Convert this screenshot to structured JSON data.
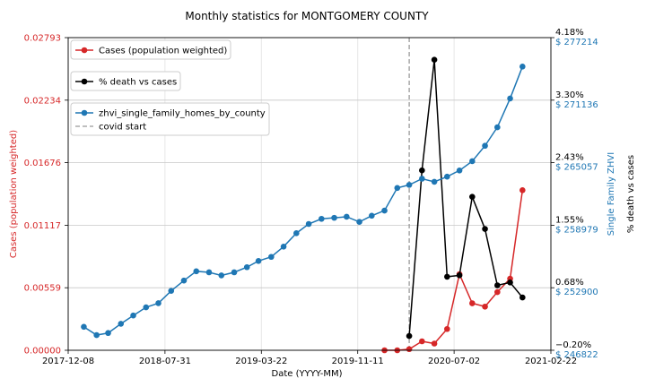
{
  "chart_data": {
    "type": "line",
    "title": "Monthly statistics for MONTGOMERY COUNTY",
    "xlabel": "Date (YYYY-MM)",
    "x_range": [
      "2017-12-08",
      "2021-02-22"
    ],
    "x_ticks": [
      "2017-12-08",
      "2018-07-31",
      "2019-03-22",
      "2019-11-11",
      "2020-07-02",
      "2021-02-22"
    ],
    "grid": true,
    "axes": {
      "left": {
        "label": "Cases (population weighted)",
        "color": "#d62728",
        "ylim": [
          0.0,
          0.02793
        ],
        "ticks": [
          "0.00000",
          "0.00559",
          "0.01117",
          "0.01676",
          "0.02234",
          "0.02793"
        ]
      },
      "right_inner": {
        "label": "Single Family ZHVI",
        "color": "#1f77b4",
        "ylim": [
          246822,
          277214
        ],
        "ticks": [
          "$ 246822",
          "$ 252900",
          "$ 258979",
          "$ 265057",
          "$ 271136",
          "$ 277214"
        ]
      },
      "right_outer": {
        "label": "% death vs cases",
        "color": "#000000",
        "ylim": [
          -0.2,
          4.18
        ],
        "ticks": [
          "−0.20%",
          "0.68%",
          "1.55%",
          "2.43%",
          "3.30%",
          "4.18%"
        ]
      }
    },
    "covid_start": "2020-03-15",
    "series": [
      {
        "name": "Cases (population weighted)",
        "axis": "left",
        "color": "#d62728",
        "points": [
          [
            "2020-01-15",
            0.0
          ],
          [
            "2020-02-15",
            0.0
          ],
          [
            "2020-03-15",
            0.0001
          ],
          [
            "2020-04-15",
            0.0008
          ],
          [
            "2020-05-15",
            0.0006
          ],
          [
            "2020-06-15",
            0.0019
          ],
          [
            "2020-07-15",
            0.0068
          ],
          [
            "2020-08-15",
            0.0042
          ],
          [
            "2020-09-15",
            0.0039
          ],
          [
            "2020-10-15",
            0.0052
          ],
          [
            "2020-11-15",
            0.0064
          ],
          [
            "2020-12-15",
            0.0143
          ]
        ]
      },
      {
        "name": "% death vs cases",
        "axis": "right_outer",
        "color": "#000000",
        "points": [
          [
            "2020-03-15",
            0.0
          ],
          [
            "2020-04-15",
            2.32
          ],
          [
            "2020-05-15",
            3.87
          ],
          [
            "2020-06-15",
            0.83
          ],
          [
            "2020-07-15",
            0.85
          ],
          [
            "2020-08-15",
            1.95
          ],
          [
            "2020-09-15",
            1.5
          ],
          [
            "2020-10-15",
            0.71
          ],
          [
            "2020-11-15",
            0.75
          ],
          [
            "2020-12-15",
            0.54
          ]
        ]
      },
      {
        "name": "zhvi_single_family_homes_by_county",
        "axis": "right_inner",
        "color": "#1f77b4",
        "points": [
          [
            "2018-01-15",
            249100
          ],
          [
            "2018-02-15",
            248300
          ],
          [
            "2018-03-15",
            248500
          ],
          [
            "2018-04-15",
            249400
          ],
          [
            "2018-05-15",
            250200
          ],
          [
            "2018-06-15",
            251000
          ],
          [
            "2018-07-15",
            251400
          ],
          [
            "2018-08-15",
            252600
          ],
          [
            "2018-09-15",
            253600
          ],
          [
            "2018-10-15",
            254500
          ],
          [
            "2018-11-15",
            254400
          ],
          [
            "2018-12-15",
            254100
          ],
          [
            "2019-01-15",
            254400
          ],
          [
            "2019-02-15",
            254900
          ],
          [
            "2019-03-15",
            255500
          ],
          [
            "2019-04-15",
            255900
          ],
          [
            "2019-05-15",
            256900
          ],
          [
            "2019-06-15",
            258200
          ],
          [
            "2019-07-15",
            259100
          ],
          [
            "2019-08-15",
            259600
          ],
          [
            "2019-09-15",
            259700
          ],
          [
            "2019-10-15",
            259800
          ],
          [
            "2019-11-15",
            259300
          ],
          [
            "2019-12-15",
            259900
          ],
          [
            "2020-01-15",
            260400
          ],
          [
            "2020-02-15",
            262600
          ],
          [
            "2020-03-15",
            262900
          ],
          [
            "2020-04-15",
            263500
          ],
          [
            "2020-05-15",
            263200
          ],
          [
            "2020-06-15",
            263700
          ],
          [
            "2020-07-15",
            264300
          ],
          [
            "2020-08-15",
            265200
          ],
          [
            "2020-09-15",
            266700
          ],
          [
            "2020-10-15",
            268500
          ],
          [
            "2020-11-15",
            271300
          ],
          [
            "2020-12-15",
            274400
          ]
        ]
      }
    ],
    "legend": [
      {
        "label": "Cases (population weighted)",
        "color": "#d62728",
        "style": "line-marker"
      },
      {
        "label": "% death vs cases",
        "color": "#000000",
        "style": "line-marker"
      },
      {
        "label": "zhvi_single_family_homes_by_county",
        "color": "#1f77b4",
        "style": "line-marker"
      },
      {
        "label": "covid start",
        "color": "#999999",
        "style": "dashed"
      }
    ],
    "legend_position": "top-left"
  }
}
